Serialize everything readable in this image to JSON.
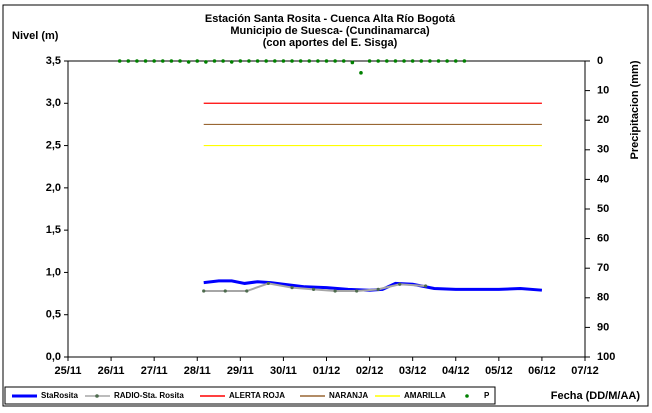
{
  "chart_data": {
    "type": "line",
    "title": [
      "Estación Santa Rosita - Cuenca Alta Río Bogotá",
      "Municipio de Suesca- (Cundinamarca)",
      "(con aportes del  E. Sisga)"
    ],
    "ylabel": "Nivel (m)",
    "y2label": "Precipitacion (mm)",
    "xlabel": "Fecha (DD/M/AA)",
    "xlim": [
      0,
      12
    ],
    "xticks": [
      {
        "value": 0,
        "label": "25/11"
      },
      {
        "value": 1,
        "label": "26/11"
      },
      {
        "value": 2,
        "label": "27/11"
      },
      {
        "value": 3,
        "label": "28/11"
      },
      {
        "value": 4,
        "label": "29/11"
      },
      {
        "value": 5,
        "label": "30/11"
      },
      {
        "value": 6,
        "label": "01/12"
      },
      {
        "value": 7,
        "label": "02/12"
      },
      {
        "value": 8,
        "label": "03/12"
      },
      {
        "value": 9,
        "label": "04/12"
      },
      {
        "value": 10,
        "label": "05/12"
      },
      {
        "value": 11,
        "label": "06/12"
      },
      {
        "value": 12,
        "label": "07/12"
      }
    ],
    "ylim": [
      0,
      3.5
    ],
    "yticks": [
      {
        "value": 0,
        "label": "0,0"
      },
      {
        "value": 0.5,
        "label": "0,5"
      },
      {
        "value": 1,
        "label": "1,0"
      },
      {
        "value": 1.5,
        "label": "1,5"
      },
      {
        "value": 2,
        "label": "2,0"
      },
      {
        "value": 2.5,
        "label": "2,5"
      },
      {
        "value": 3,
        "label": "3,0"
      },
      {
        "value": 3.5,
        "label": "3,5"
      }
    ],
    "y2lim": [
      100,
      0
    ],
    "y2ticks": [
      0,
      10,
      20,
      30,
      40,
      50,
      60,
      70,
      80,
      90,
      100
    ],
    "series": [
      {
        "name": "StaRosita",
        "color": "#0000ff",
        "style": "line",
        "x": [
          3.15,
          3.5,
          3.8,
          4.1,
          4.4,
          4.7,
          5.0,
          5.5,
          6.0,
          6.5,
          7.0,
          7.3,
          7.6,
          8.0,
          8.5,
          9.0,
          10.0,
          10.5,
          11.0
        ],
        "values": [
          0.88,
          0.9,
          0.9,
          0.87,
          0.89,
          0.88,
          0.86,
          0.83,
          0.82,
          0.8,
          0.79,
          0.8,
          0.87,
          0.86,
          0.81,
          0.8,
          0.8,
          0.81,
          0.79
        ]
      },
      {
        "name": "RADIO-Sta. Rosita",
        "color": "#a6a6a6",
        "style": "line-markers",
        "x": [
          3.15,
          3.65,
          4.15,
          4.65,
          5.2,
          5.7,
          6.2,
          6.7,
          7.2,
          7.7,
          8.3
        ],
        "values": [
          0.78,
          0.78,
          0.78,
          0.87,
          0.82,
          0.8,
          0.78,
          0.78,
          0.8,
          0.86,
          0.84
        ]
      },
      {
        "name": "ALERTA ROJA",
        "color": "#ff0000",
        "style": "line",
        "x": [
          3.15,
          11.0
        ],
        "values": [
          3.0,
          3.0
        ]
      },
      {
        "name": "NARANJA",
        "color": "#996633",
        "style": "line",
        "x": [
          3.15,
          11.0
        ],
        "values": [
          2.75,
          2.75
        ]
      },
      {
        "name": "AMARILLA",
        "color": "#ffff00",
        "style": "line",
        "x": [
          3.15,
          11.0
        ],
        "values": [
          2.5,
          2.5
        ]
      },
      {
        "name": "P",
        "color": "#008000",
        "style": "markers",
        "axis": "y2",
        "x": [
          1.2,
          1.4,
          1.6,
          1.8,
          2.0,
          2.2,
          2.4,
          2.6,
          2.8,
          3.0,
          3.2,
          3.4,
          3.6,
          3.8,
          4.0,
          4.2,
          4.4,
          4.6,
          4.8,
          5.0,
          5.2,
          5.4,
          5.6,
          5.8,
          6.0,
          6.2,
          6.4,
          6.6,
          6.8,
          7.0,
          7.2,
          7.4,
          7.6,
          7.8,
          8.0,
          8.2,
          8.4,
          8.6,
          8.8,
          9.0,
          9.2
        ],
        "values": [
          0,
          0,
          0,
          0,
          0,
          0,
          0,
          0,
          0.3,
          0,
          0.3,
          0,
          0,
          0.3,
          0,
          0,
          0,
          0,
          0,
          0,
          0,
          0,
          0,
          0,
          0,
          0,
          0,
          0.5,
          4,
          0,
          0,
          0,
          0,
          0,
          0,
          0,
          0,
          0,
          0,
          0,
          0
        ]
      }
    ]
  }
}
